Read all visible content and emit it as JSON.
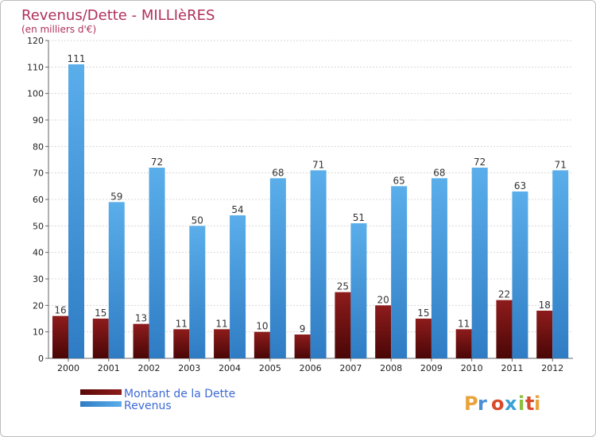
{
  "chart_data": {
    "type": "bar",
    "title": "Revenus/Dette - MILLIèRES",
    "subtitle": "(en milliers d'€)",
    "categories": [
      "2000",
      "2001",
      "2002",
      "2003",
      "2004",
      "2005",
      "2006",
      "2007",
      "2008",
      "2009",
      "2010",
      "2011",
      "2012"
    ],
    "series": [
      {
        "name": "Montant de la Dette",
        "color": "#7a1010",
        "values": [
          16,
          15,
          13,
          11,
          11,
          10,
          9,
          25,
          20,
          15,
          11,
          22,
          18
        ]
      },
      {
        "name": "Revenus",
        "color": "#4a9de0",
        "values": [
          111,
          59,
          72,
          50,
          54,
          68,
          71,
          51,
          65,
          68,
          72,
          63,
          71
        ]
      }
    ],
    "ylim": [
      0,
      120
    ],
    "yticks": [
      0,
      10,
      20,
      30,
      40,
      50,
      60,
      70,
      80,
      90,
      100,
      110,
      120
    ],
    "grid": true,
    "legend": "bottom-left",
    "logo_text": "Proxiti",
    "logo_colors": [
      "#e8a33a",
      "#4a8fd6",
      "#d94a2b",
      "#3aa0d8",
      "#8bbf3a",
      "#d94a2b",
      "#e8a33a"
    ]
  }
}
